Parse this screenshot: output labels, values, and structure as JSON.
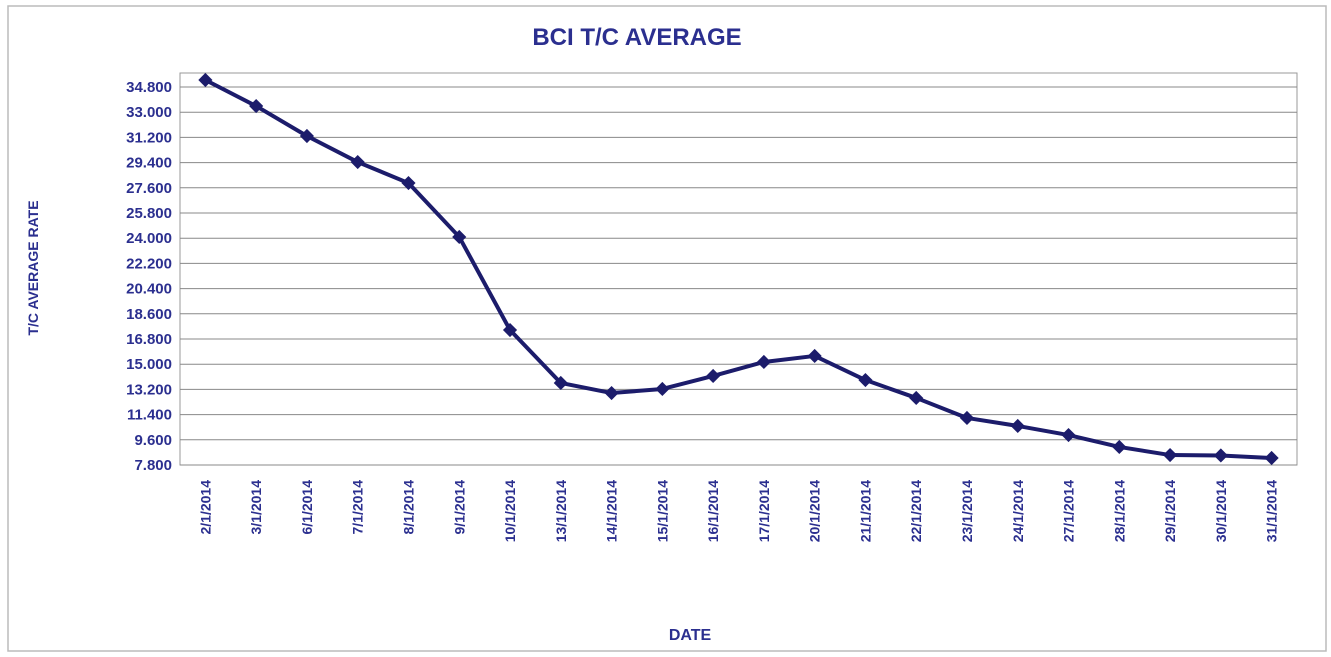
{
  "chart_data": {
    "type": "line",
    "title": "BCI T/C AVERAGE",
    "x_label": "DATE",
    "y_label": "T/C AVERAGE RATE",
    "categories": [
      "2/1/2014",
      "3/1/2014",
      "6/1/2014",
      "7/1/2014",
      "8/1/2014",
      "9/1/2014",
      "10/1/2014",
      "13/1/2014",
      "14/1/2014",
      "15/1/2014",
      "16/1/2014",
      "17/1/2014",
      "20/1/2014",
      "21/1/2014",
      "22/1/2014",
      "23/1/2014",
      "24/1/2014",
      "27/1/2014",
      "28/1/2014",
      "29/1/2014",
      "30/1/2014",
      "31/1/2014"
    ],
    "series": [
      {
        "name": "BCI T/C AVERAGE",
        "color": "#1c1c6b",
        "values": [
          35300,
          33440,
          31300,
          29440,
          27940,
          24090,
          17440,
          13660,
          12940,
          13230,
          14160,
          15160,
          15590,
          13870,
          12590,
          11160,
          10590,
          9940,
          9090,
          8510,
          8480,
          8300
        ]
      }
    ],
    "ylim": [
      7800,
      35800
    ],
    "yticks": [
      {
        "value": 7800,
        "label": "7.800"
      },
      {
        "value": 9600,
        "label": "9.600"
      },
      {
        "value": 11400,
        "label": "11.400"
      },
      {
        "value": 13200,
        "label": "13.200"
      },
      {
        "value": 15000,
        "label": "15.000"
      },
      {
        "value": 16800,
        "label": "16.800"
      },
      {
        "value": 18600,
        "label": "18.600"
      },
      {
        "value": 20400,
        "label": "20.400"
      },
      {
        "value": 22200,
        "label": "22.200"
      },
      {
        "value": 24000,
        "label": "24.000"
      },
      {
        "value": 25800,
        "label": "25.800"
      },
      {
        "value": 27600,
        "label": "27.600"
      },
      {
        "value": 29400,
        "label": "29.400"
      },
      {
        "value": 31200,
        "label": "31.200"
      },
      {
        "value": 33000,
        "label": "33.000"
      },
      {
        "value": 34800,
        "label": "34.800"
      }
    ],
    "grid": true
  }
}
